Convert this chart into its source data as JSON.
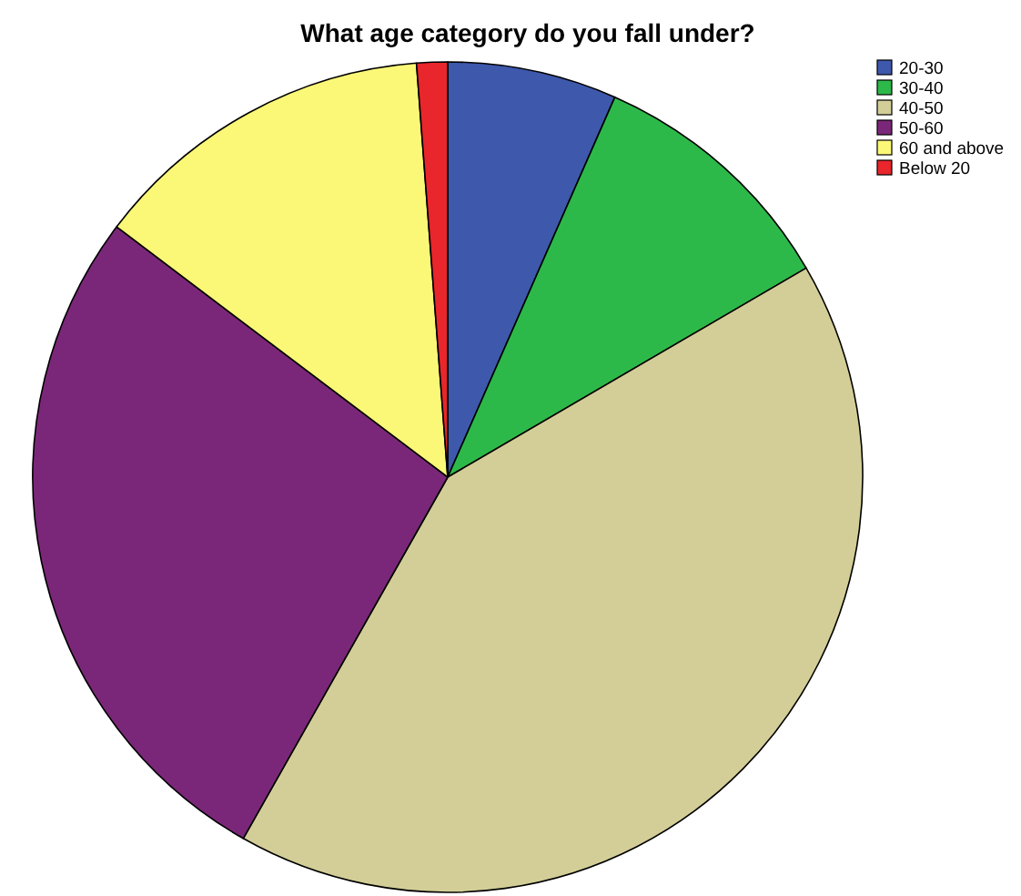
{
  "chart_data": {
    "type": "pie",
    "title": "What age category do you fall under?",
    "categories": [
      "20-30",
      "30-40",
      "40-50",
      "50-60",
      "60 and above",
      "Below 20"
    ],
    "values": [
      6.6,
      10,
      41.6,
      27.1,
      13.5,
      1.2
    ],
    "colors": [
      "#3e58ac",
      "#2db94a",
      "#d3ce97",
      "#7b2779",
      "#fbf877",
      "#e8262b"
    ],
    "legend": "top right"
  }
}
